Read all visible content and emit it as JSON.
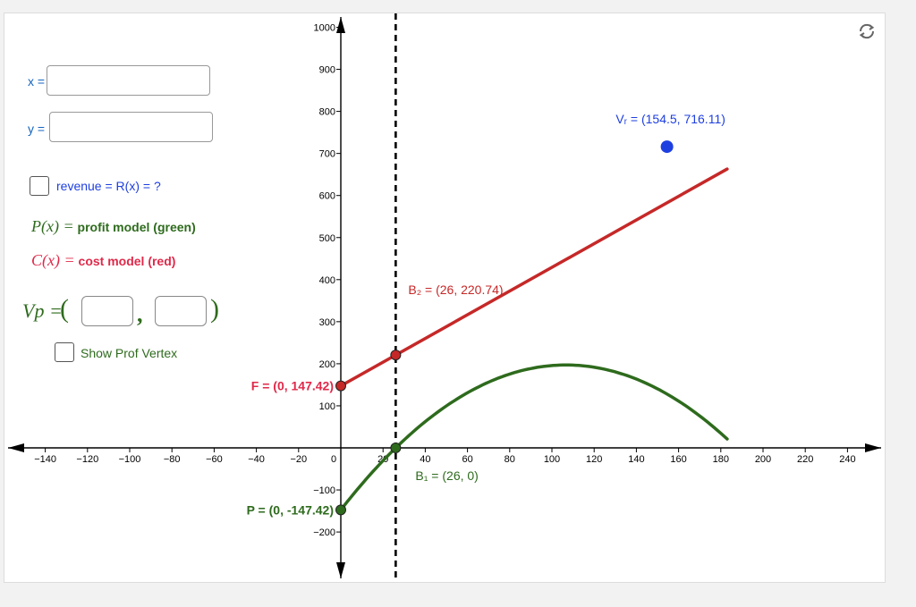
{
  "colors": {
    "revenue_blue": "#1e3fe0",
    "cost_red": "#c62828",
    "cost_label_red": "#e0294a",
    "profit_green": "#2e6b1d",
    "field_label_blue": "#1565c0",
    "guide_black": "#000000"
  },
  "inputs": {
    "x_label": "x =",
    "x_value": "",
    "y_label": "y =",
    "y_value": ""
  },
  "revenue_toggle": {
    "checked": false,
    "label": "revenue = R(x) =  ?"
  },
  "profit_model": {
    "math": "P(x) =",
    "label": "profit model (green)"
  },
  "cost_model": {
    "math": "C(x) =",
    "label": "cost model (red)"
  },
  "vertex_input": {
    "math": "Vp =",
    "open_paren": "(",
    "comma": ",",
    "close_paren": ")",
    "x_value": "",
    "y_value": ""
  },
  "show_prof_vertex": {
    "checked": false,
    "label": "Show Prof Vertex"
  },
  "refresh_icon": "refresh-icon",
  "graph": {
    "x_range": [
      -150,
      250
    ],
    "y_range": [
      -310,
      1010
    ],
    "x_ticks": [
      -140,
      -120,
      -100,
      -80,
      -60,
      -40,
      -20,
      0,
      20,
      40,
      60,
      80,
      100,
      120,
      140,
      160,
      180,
      200,
      220,
      240
    ],
    "y_ticks": [
      -200,
      -100,
      100,
      200,
      300,
      400,
      500,
      600,
      700,
      800,
      900,
      1000
    ],
    "guide_line_x": 26,
    "cost_line": {
      "from": [
        0,
        147.42
      ],
      "to": [
        183,
        663
      ]
    },
    "profit_curve": {
      "a": -0.03025,
      "b": 6.4564,
      "c": -147.42,
      "x_from": 0,
      "x_to": 183
    },
    "points": [
      {
        "name": "point-F",
        "x": 0,
        "y": 147.42,
        "color": "#c62828",
        "label": "F = (0, 147.42)",
        "label_color": "#e0294a",
        "bold": true,
        "anchor": "left"
      },
      {
        "name": "point-B2",
        "x": 26,
        "y": 220.74,
        "color": "#c62828",
        "label": "B₂ = (26, 220.74)",
        "label_color": "#c62828",
        "bold": false,
        "anchor": "right-up"
      },
      {
        "name": "point-P",
        "x": 0,
        "y": -147.42,
        "color": "#2e6b1d",
        "label": "P = (0, -147.42)",
        "label_color": "#2e6b1d",
        "bold": true,
        "anchor": "left"
      },
      {
        "name": "point-B1",
        "x": 26,
        "y": 0,
        "color": "#2e6b1d",
        "label": "B₁ = (26, 0)",
        "label_color": "#2e6b1d",
        "bold": false,
        "anchor": "right-down"
      },
      {
        "name": "point-Vr",
        "x": 154.5,
        "y": 716.11,
        "color": "#1e3fe0",
        "label": "Vᵣ = (154.5, 716.11)",
        "label_color": "#1e3fe0",
        "bold": false,
        "anchor": "above"
      }
    ]
  }
}
